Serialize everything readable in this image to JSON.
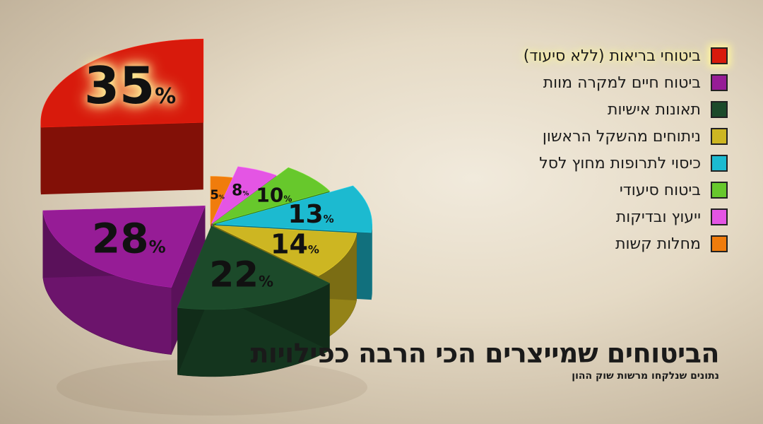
{
  "chart_data": {
    "type": "pie",
    "title": "הביטוחים שמייצרים הכי הרבה כפילויות",
    "subtitle": "נתונים שנלקחו מרשות שוק ההון",
    "categories": [
      "ביטוחי בריאות (ללא סיעוד)",
      "ביטוח חיים למקרה מוות",
      "תאונות אישיות",
      "ניתוחים מהשקל הראשון",
      "כיסוי לתרופות מחוץ לסל",
      "ביטוח סיעודי",
      "ייעוץ ובדיקות",
      "מחלות קשות"
    ],
    "values": [
      35,
      28,
      22,
      14,
      13,
      10,
      8,
      5
    ],
    "value_labels": [
      "35",
      "28",
      "22",
      "14",
      "13",
      "10",
      "8",
      "5"
    ],
    "unit": "%",
    "colors": [
      "#d81a0c",
      "#961c96",
      "#1c4a2a",
      "#cdb622",
      "#1cbad0",
      "#67c82c",
      "#e455e4",
      "#f07c0c"
    ],
    "legend_position": "top-right"
  }
}
